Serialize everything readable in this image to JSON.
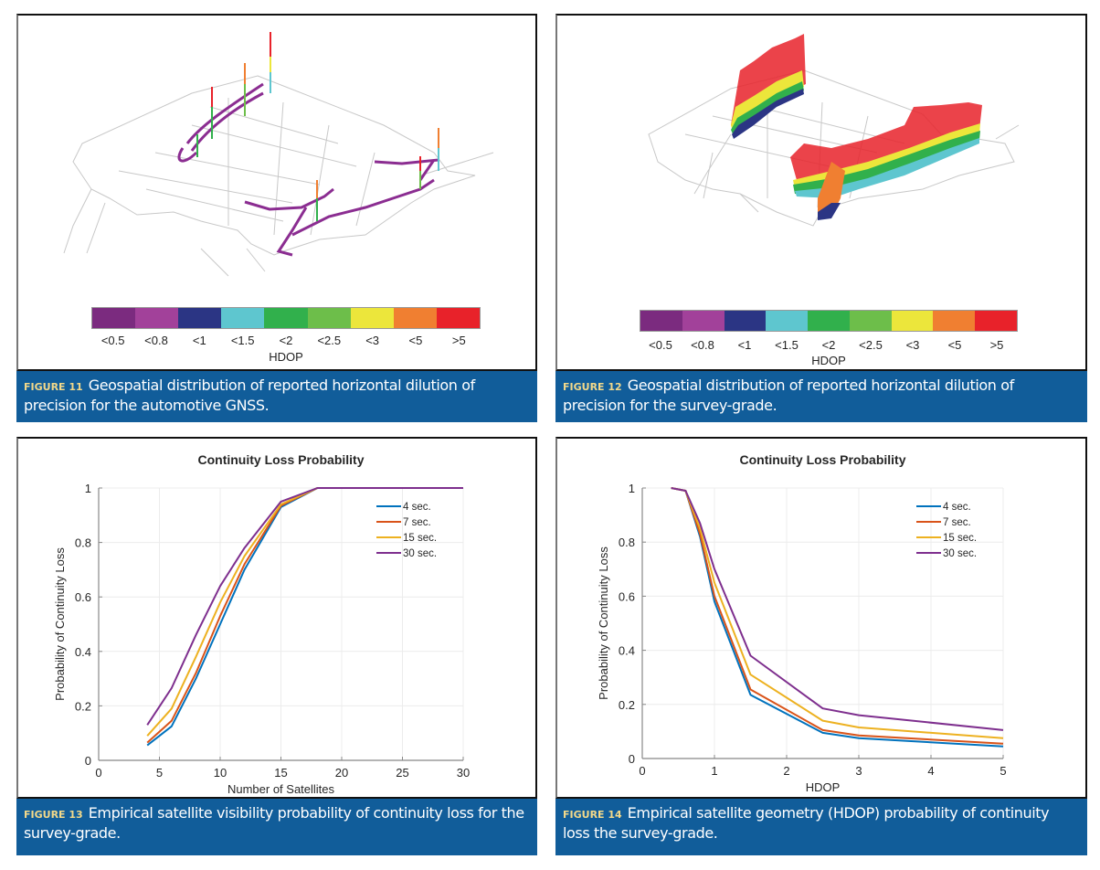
{
  "figures": [
    {
      "id": "fig11",
      "label": "FIGURE 11",
      "caption": "Geospatial distribution of reported horizontal dilution of precision for the automotive GNSS.",
      "type": "map",
      "colorbar": {
        "title": "HDOP",
        "bins": [
          {
            "label": "<0.5",
            "color": "#7b2b7f"
          },
          {
            "label": "<0.8",
            "color": "#a2419a"
          },
          {
            "label": "<1",
            "color": "#2b3584"
          },
          {
            "label": "<1.5",
            "color": "#5ec6cf"
          },
          {
            "label": "<2",
            "color": "#31b04c"
          },
          {
            "label": "<2.5",
            "color": "#6dbe4a"
          },
          {
            "label": "<3",
            "color": "#ece63b"
          },
          {
            "label": "<5",
            "color": "#f07f31"
          },
          {
            "label": ">5",
            "color": "#e8222a"
          }
        ]
      }
    },
    {
      "id": "fig12",
      "label": "FIGURE 12",
      "caption": "Geospatial distribution of reported horizontal dilution of precision for the survey-grade.",
      "type": "map",
      "colorbar": {
        "title": "HDOP",
        "bins": [
          {
            "label": "<0.5",
            "color": "#7b2b7f"
          },
          {
            "label": "<0.8",
            "color": "#a2419a"
          },
          {
            "label": "<1",
            "color": "#2b3584"
          },
          {
            "label": "<1.5",
            "color": "#5ec6cf"
          },
          {
            "label": "<2",
            "color": "#31b04c"
          },
          {
            "label": "<2.5",
            "color": "#6dbe4a"
          },
          {
            "label": "<3",
            "color": "#ece63b"
          },
          {
            "label": "<5",
            "color": "#f07f31"
          },
          {
            "label": ">5",
            "color": "#e8222a"
          }
        ]
      }
    },
    {
      "id": "fig13",
      "label": "FIGURE 13",
      "caption": "Empirical satellite visibility probability of continuity loss for the survey-grade."
    },
    {
      "id": "fig14",
      "label": "FIGURE 14",
      "caption": "Empirical satellite geometry (HDOP) probability of continuity loss the survey-grade."
    }
  ],
  "chart_data": [
    {
      "type": "line",
      "title": "Continuity Loss Probability",
      "xlabel": "Number of Satellites",
      "ylabel": "Probability of Continuity Loss",
      "xlim": [
        0,
        30
      ],
      "ylim": [
        0,
        1
      ],
      "xticks": [
        0,
        5,
        10,
        15,
        20,
        25,
        30
      ],
      "yticks": [
        0,
        0.2,
        0.4,
        0.6,
        0.8,
        1
      ],
      "ytick_labels": [
        "0",
        "0.2",
        "0.4",
        "0.6",
        "0.8",
        "1"
      ],
      "grid": true,
      "legend": "top-right",
      "x": [
        4,
        6,
        8,
        10,
        12,
        15,
        18,
        20,
        25,
        30
      ],
      "series": [
        {
          "name": "4 sec.",
          "color": "#0072bd",
          "values": [
            0.055,
            0.125,
            0.3,
            0.5,
            0.7,
            0.93,
            1,
            1,
            1,
            1
          ]
        },
        {
          "name": "7 sec.",
          "color": "#d95319",
          "values": [
            0.065,
            0.145,
            0.32,
            0.53,
            0.72,
            0.935,
            1,
            1,
            1,
            1
          ]
        },
        {
          "name": "15 sec.",
          "color": "#edb120",
          "values": [
            0.09,
            0.19,
            0.38,
            0.58,
            0.75,
            0.94,
            1,
            1,
            1,
            1
          ]
        },
        {
          "name": "30 sec.",
          "color": "#7e2f8e",
          "values": [
            0.13,
            0.265,
            0.46,
            0.64,
            0.78,
            0.95,
            1,
            1,
            1,
            1
          ]
        }
      ]
    },
    {
      "type": "line",
      "title": "Continuity Loss Probability",
      "xlabel": "HDOP",
      "ylabel": "Probability of Continuity Loss",
      "xlim": [
        0,
        5
      ],
      "ylim": [
        0,
        1
      ],
      "xticks": [
        0,
        1,
        2,
        3,
        4,
        5
      ],
      "yticks": [
        0,
        0.2,
        0.4,
        0.6,
        0.8,
        1
      ],
      "ytick_labels": [
        "0",
        "0.2",
        "0.4",
        "0.6",
        "0.8",
        "1"
      ],
      "grid": true,
      "legend": "top-right",
      "x": [
        0.4,
        0.6,
        0.8,
        1.0,
        1.5,
        2.5,
        3.0,
        5.0
      ],
      "series": [
        {
          "name": "4 sec.",
          "color": "#0072bd",
          "values": [
            1,
            0.99,
            0.82,
            0.58,
            0.235,
            0.095,
            0.075,
            0.045
          ]
        },
        {
          "name": "7 sec.",
          "color": "#d95319",
          "values": [
            1,
            0.99,
            0.83,
            0.6,
            0.255,
            0.105,
            0.085,
            0.055
          ]
        },
        {
          "name": "15 sec.",
          "color": "#edb120",
          "values": [
            1,
            0.99,
            0.85,
            0.65,
            0.31,
            0.14,
            0.115,
            0.075
          ]
        },
        {
          "name": "30 sec.",
          "color": "#7e2f8e",
          "values": [
            1,
            0.99,
            0.87,
            0.7,
            0.38,
            0.185,
            0.16,
            0.105
          ]
        }
      ]
    }
  ]
}
